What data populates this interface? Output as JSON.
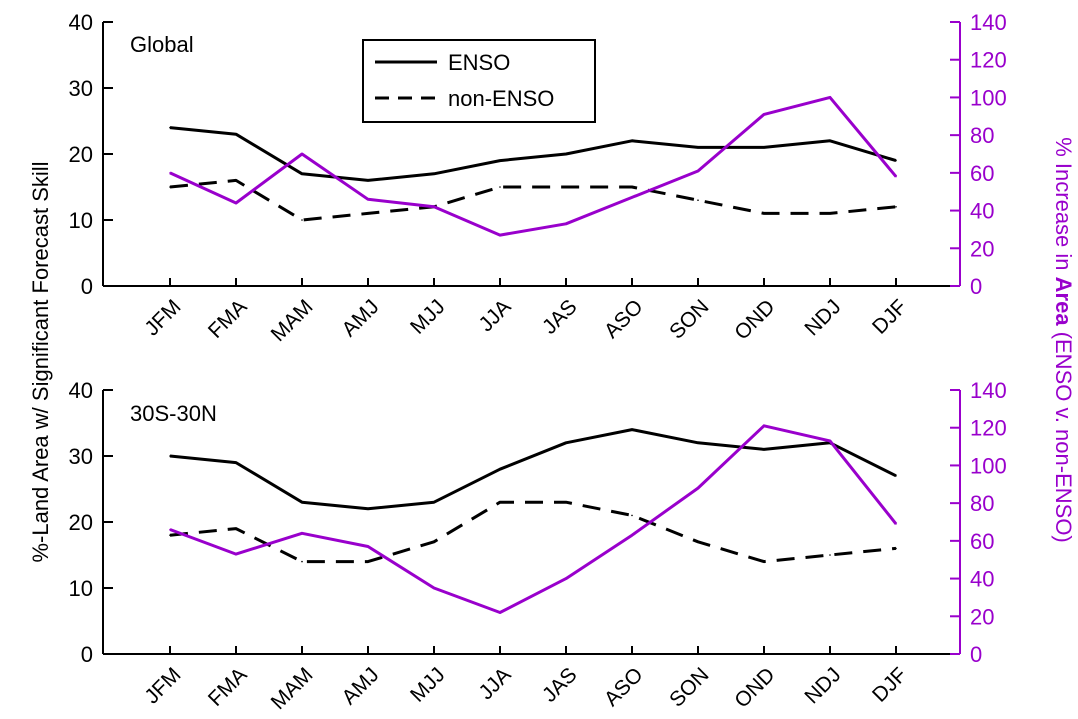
{
  "figure": {
    "y_axis_label": "%-Land Area w/ Significant Forecast Skill",
    "y2_axis_label_prefix": "% Increase in ",
    "y2_axis_label_emph": "Area",
    "y2_axis_label_suffix": " (ENSO v. non-ENSO)",
    "colors": {
      "primary": "#000000",
      "secondary": "#9900cc",
      "background": "#ffffff"
    }
  },
  "legend": {
    "placement": "top-center of upper panel",
    "entries": [
      {
        "label": "ENSO",
        "style": "solid",
        "color": "#000000"
      },
      {
        "label": "non-ENSO",
        "style": "dashed",
        "color": "#000000"
      }
    ]
  },
  "chart_data": [
    {
      "type": "line",
      "panel_label": "Global",
      "categories": [
        "JFM",
        "FMA",
        "MAM",
        "AMJ",
        "MJJ",
        "JJA",
        "JAS",
        "ASO",
        "SON",
        "OND",
        "NDJ",
        "DJF"
      ],
      "ylim": [
        0,
        40
      ],
      "yticks": [
        0,
        10,
        20,
        30,
        40
      ],
      "y2lim": [
        0,
        140
      ],
      "y2ticks": [
        0,
        20,
        40,
        60,
        80,
        100,
        120,
        140
      ],
      "grid": false,
      "series": [
        {
          "name": "ENSO",
          "axis": "left",
          "style": "solid",
          "color": "#000000",
          "values": [
            24,
            23,
            17,
            16,
            17,
            19,
            20,
            22,
            21,
            21,
            22,
            19
          ]
        },
        {
          "name": "non-ENSO",
          "axis": "left",
          "style": "dashed",
          "color": "#000000",
          "values": [
            15,
            16,
            10,
            11,
            12,
            15,
            15,
            15,
            13,
            11,
            11,
            12
          ]
        },
        {
          "axis": "right",
          "style": "solid",
          "color": "#9900cc",
          "values": [
            60,
            44,
            70,
            46,
            42,
            27,
            33,
            47,
            61,
            91,
            100,
            58
          ]
        }
      ]
    },
    {
      "type": "line",
      "panel_label": "30S-30N",
      "categories": [
        "JFM",
        "FMA",
        "MAM",
        "AMJ",
        "MJJ",
        "JJA",
        "JAS",
        "ASO",
        "SON",
        "OND",
        "NDJ",
        "DJF"
      ],
      "ylim": [
        0,
        40
      ],
      "yticks": [
        0,
        10,
        20,
        30,
        40
      ],
      "y2lim": [
        0,
        140
      ],
      "y2ticks": [
        0,
        20,
        40,
        60,
        80,
        100,
        120,
        140
      ],
      "grid": false,
      "series": [
        {
          "name": "ENSO",
          "axis": "left",
          "style": "solid",
          "color": "#000000",
          "values": [
            30,
            29,
            23,
            22,
            23,
            28,
            32,
            34,
            32,
            31,
            32,
            27
          ]
        },
        {
          "name": "non-ENSO",
          "axis": "left",
          "style": "dashed",
          "color": "#000000",
          "values": [
            18,
            19,
            14,
            14,
            17,
            23,
            23,
            21,
            17,
            14,
            15,
            16
          ]
        },
        {
          "axis": "right",
          "style": "solid",
          "color": "#9900cc",
          "values": [
            66,
            53,
            64,
            57,
            35,
            22,
            40,
            63,
            88,
            121,
            113,
            69
          ]
        }
      ]
    }
  ]
}
